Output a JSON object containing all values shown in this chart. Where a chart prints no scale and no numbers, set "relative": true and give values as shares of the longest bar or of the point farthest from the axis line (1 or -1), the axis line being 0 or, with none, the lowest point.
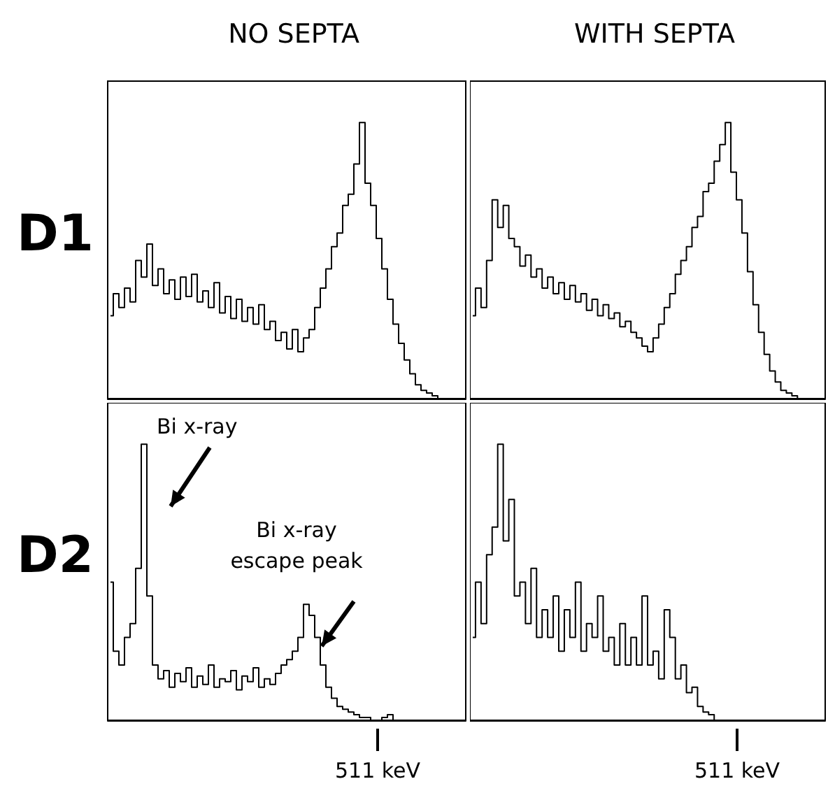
{
  "chart_data": [
    {
      "type": "step",
      "title": "NO SEPTA",
      "ylabel": "D1",
      "relative": true,
      "tick_labels": false,
      "color": "#000000",
      "categories": [
        null,
        null,
        null,
        null,
        null,
        null,
        null,
        null,
        null,
        null,
        null,
        null,
        null,
        null,
        null,
        null,
        null,
        null,
        null,
        null,
        null,
        null,
        null,
        null,
        null,
        null,
        null,
        null,
        null,
        null,
        null,
        null,
        null,
        null,
        null,
        null,
        null,
        null,
        null,
        null,
        null,
        null,
        null,
        null,
        null,
        null,
        null,
        null,
        null,
        null,
        null,
        null,
        null,
        null,
        null,
        null,
        null,
        null,
        null,
        null,
        null,
        null,
        null,
        null
      ],
      "values": [
        0.3,
        0.38,
        0.33,
        0.4,
        0.35,
        0.5,
        0.44,
        0.56,
        0.41,
        0.47,
        0.38,
        0.43,
        0.36,
        0.44,
        0.37,
        0.45,
        0.35,
        0.39,
        0.33,
        0.42,
        0.31,
        0.37,
        0.29,
        0.36,
        0.28,
        0.33,
        0.27,
        0.34,
        0.25,
        0.28,
        0.21,
        0.24,
        0.18,
        0.25,
        0.17,
        0.22,
        0.25,
        0.33,
        0.4,
        0.47,
        0.55,
        0.6,
        0.7,
        0.74,
        0.85,
        1.0,
        0.78,
        0.7,
        0.58,
        0.47,
        0.36,
        0.27,
        0.2,
        0.14,
        0.09,
        0.05,
        0.03,
        0.02,
        0.01,
        0,
        0,
        0,
        0,
        0
      ]
    },
    {
      "type": "step",
      "title": "WITH SEPTA",
      "relative": true,
      "tick_labels": false,
      "color": "#000000",
      "categories": [
        null,
        null,
        null,
        null,
        null,
        null,
        null,
        null,
        null,
        null,
        null,
        null,
        null,
        null,
        null,
        null,
        null,
        null,
        null,
        null,
        null,
        null,
        null,
        null,
        null,
        null,
        null,
        null,
        null,
        null,
        null,
        null,
        null,
        null,
        null,
        null,
        null,
        null,
        null,
        null,
        null,
        null,
        null,
        null,
        null,
        null,
        null,
        null,
        null,
        null,
        null,
        null,
        null,
        null,
        null,
        null,
        null,
        null,
        null,
        null,
        null,
        null,
        null,
        null
      ],
      "values": [
        0.3,
        0.4,
        0.33,
        0.5,
        0.72,
        0.62,
        0.7,
        0.58,
        0.55,
        0.48,
        0.52,
        0.44,
        0.47,
        0.4,
        0.44,
        0.38,
        0.42,
        0.36,
        0.41,
        0.35,
        0.38,
        0.32,
        0.36,
        0.3,
        0.34,
        0.29,
        0.31,
        0.26,
        0.28,
        0.24,
        0.22,
        0.19,
        0.17,
        0.22,
        0.27,
        0.33,
        0.38,
        0.45,
        0.5,
        0.55,
        0.62,
        0.66,
        0.75,
        0.78,
        0.86,
        0.92,
        1.0,
        0.82,
        0.72,
        0.6,
        0.46,
        0.34,
        0.24,
        0.16,
        0.1,
        0.06,
        0.03,
        0.02,
        0.01,
        0,
        0,
        0,
        0,
        0
      ]
    },
    {
      "type": "step",
      "ylabel": "D2",
      "relative": true,
      "tick_labels": false,
      "color": "#000000",
      "annotations": [
        "Bi x-ray",
        "Bi x-ray\nescape peak",
        "511 keV"
      ],
      "categories": [
        null,
        null,
        null,
        null,
        null,
        null,
        null,
        null,
        null,
        null,
        null,
        null,
        null,
        null,
        null,
        null,
        null,
        null,
        null,
        null,
        null,
        null,
        null,
        null,
        null,
        null,
        null,
        null,
        null,
        null,
        null,
        null,
        null,
        null,
        null,
        null,
        null,
        null,
        null,
        null,
        null,
        null,
        null,
        null,
        null,
        null,
        null,
        null,
        null,
        null,
        null,
        null,
        null,
        null,
        null,
        null,
        null,
        null,
        null,
        null,
        null,
        null,
        null,
        null
      ],
      "values": [
        0.5,
        0.25,
        0.2,
        0.3,
        0.35,
        0.55,
        1.0,
        0.45,
        0.2,
        0.15,
        0.18,
        0.12,
        0.17,
        0.14,
        0.19,
        0.12,
        0.16,
        0.13,
        0.2,
        0.12,
        0.15,
        0.14,
        0.18,
        0.11,
        0.16,
        0.14,
        0.19,
        0.12,
        0.15,
        0.13,
        0.17,
        0.2,
        0.22,
        0.25,
        0.3,
        0.42,
        0.38,
        0.3,
        0.2,
        0.12,
        0.08,
        0.05,
        0.04,
        0.03,
        0.02,
        0.01,
        0.01,
        0,
        0,
        0.01,
        0.02,
        0,
        0,
        0,
        0,
        0,
        0,
        0,
        0,
        0,
        0,
        0,
        0,
        0
      ]
    },
    {
      "type": "step",
      "relative": true,
      "tick_labels": false,
      "color": "#000000",
      "annotations": [
        "511 keV"
      ],
      "categories": [
        null,
        null,
        null,
        null,
        null,
        null,
        null,
        null,
        null,
        null,
        null,
        null,
        null,
        null,
        null,
        null,
        null,
        null,
        null,
        null,
        null,
        null,
        null,
        null,
        null,
        null,
        null,
        null,
        null,
        null,
        null,
        null,
        null,
        null,
        null,
        null,
        null,
        null,
        null,
        null,
        null,
        null,
        null,
        null,
        null,
        null,
        null,
        null,
        null,
        null,
        null,
        null,
        null,
        null,
        null,
        null,
        null,
        null,
        null,
        null,
        null,
        null,
        null,
        null
      ],
      "values": [
        0.3,
        0.5,
        0.35,
        0.6,
        0.7,
        1.0,
        0.65,
        0.8,
        0.45,
        0.5,
        0.35,
        0.55,
        0.3,
        0.4,
        0.3,
        0.45,
        0.25,
        0.4,
        0.3,
        0.5,
        0.25,
        0.35,
        0.3,
        0.45,
        0.25,
        0.3,
        0.2,
        0.35,
        0.2,
        0.3,
        0.2,
        0.45,
        0.2,
        0.25,
        0.15,
        0.4,
        0.3,
        0.15,
        0.2,
        0.1,
        0.12,
        0.05,
        0.03,
        0.02,
        0,
        0,
        0,
        0,
        0,
        0,
        0,
        0,
        0,
        0,
        0,
        0,
        0,
        0,
        0,
        0,
        0,
        0,
        0,
        0
      ]
    }
  ]
}
